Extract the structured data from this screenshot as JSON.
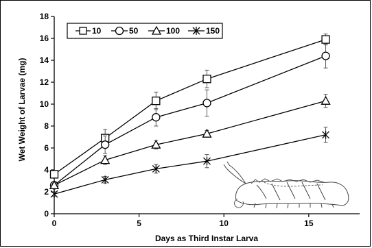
{
  "chart_data": {
    "type": "line",
    "xlabel": "Days as Third Instar Larva",
    "ylabel": "Wet Weight of Larvae (mg)",
    "xlim": [
      0,
      18
    ],
    "ylim": [
      0,
      18
    ],
    "xticks": [
      0,
      5,
      10,
      15
    ],
    "yticks": [
      0,
      2,
      4,
      6,
      8,
      10,
      12,
      14,
      16,
      18
    ],
    "x": [
      0,
      3,
      6,
      9,
      16
    ],
    "legend_position": "top-left",
    "grid": false,
    "series": [
      {
        "name": "10",
        "marker": "square",
        "values": [
          3.6,
          6.9,
          10.3,
          12.3,
          15.9
        ],
        "errors": [
          0.2,
          0.8,
          0.8,
          0.8,
          0.5
        ]
      },
      {
        "name": "50",
        "marker": "circle",
        "values": [
          2.6,
          6.3,
          8.8,
          10.1,
          14.4
        ],
        "errors": [
          0.2,
          0.8,
          0.8,
          1.2,
          1.1
        ]
      },
      {
        "name": "100",
        "marker": "triangle",
        "values": [
          2.6,
          4.9,
          6.3,
          7.3,
          10.3
        ],
        "errors": [
          0.2,
          0.4,
          0.4,
          0.3,
          0.6
        ]
      },
      {
        "name": "150",
        "marker": "star",
        "values": [
          1.8,
          3.1,
          4.1,
          4.8,
          7.2
        ],
        "errors": [
          0.2,
          0.3,
          0.4,
          0.6,
          0.7
        ]
      }
    ]
  }
}
